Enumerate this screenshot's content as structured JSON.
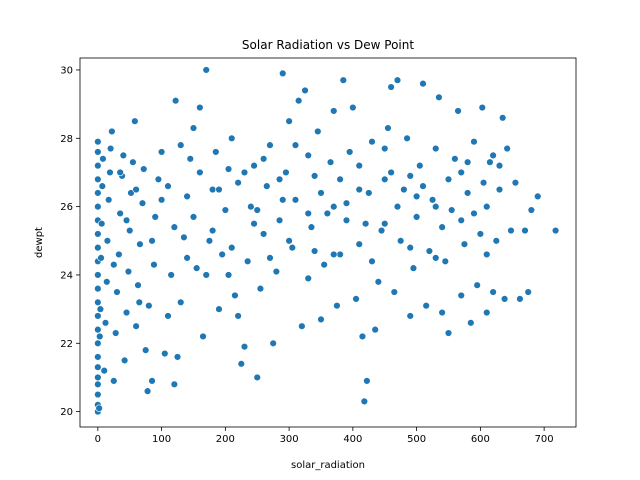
{
  "chart_data": {
    "type": "scatter",
    "title": "Solar Radiation vs Dew Point",
    "xlabel": "solar_radiation",
    "ylabel": "dewpt",
    "xlim": [
      -28,
      750
    ],
    "ylim": [
      19.55,
      30.35
    ],
    "xticks": [
      0,
      100,
      200,
      300,
      400,
      500,
      600,
      700
    ],
    "yticks": [
      20,
      22,
      24,
      26,
      28,
      30
    ],
    "grid": false,
    "legend": "none",
    "marker_color": "#1f77b4",
    "marker_edge": "#ffffff",
    "series": [
      {
        "points": [
          [
            0,
            20.0
          ],
          [
            0,
            20.2
          ],
          [
            0,
            20.5
          ],
          [
            0,
            20.8
          ],
          [
            0,
            21.0
          ],
          [
            0,
            21.3
          ],
          [
            0,
            21.6
          ],
          [
            0,
            22.0
          ],
          [
            0,
            22.4
          ],
          [
            0,
            22.8
          ],
          [
            0,
            23.2
          ],
          [
            0,
            23.6
          ],
          [
            0,
            24.0
          ],
          [
            0,
            24.4
          ],
          [
            0,
            24.8
          ],
          [
            0,
            25.2
          ],
          [
            0,
            25.6
          ],
          [
            0,
            26.0
          ],
          [
            0,
            26.4
          ],
          [
            0,
            26.8
          ],
          [
            0,
            27.2
          ],
          [
            0,
            27.6
          ],
          [
            0,
            27.9
          ],
          [
            2,
            20.1
          ],
          [
            3,
            22.2
          ],
          [
            4,
            23.0
          ],
          [
            5,
            24.5
          ],
          [
            6,
            25.5
          ],
          [
            7,
            26.6
          ],
          [
            8,
            27.4
          ],
          [
            10,
            21.2
          ],
          [
            12,
            22.6
          ],
          [
            14,
            23.8
          ],
          [
            15,
            25.0
          ],
          [
            17,
            26.2
          ],
          [
            19,
            27.0
          ],
          [
            20,
            27.7
          ],
          [
            22,
            28.2
          ],
          [
            25,
            20.9
          ],
          [
            28,
            22.3
          ],
          [
            30,
            23.5
          ],
          [
            33,
            24.6
          ],
          [
            35,
            25.8
          ],
          [
            38,
            26.9
          ],
          [
            40,
            27.5
          ],
          [
            42,
            21.5
          ],
          [
            45,
            22.9
          ],
          [
            48,
            24.1
          ],
          [
            50,
            25.3
          ],
          [
            52,
            26.4
          ],
          [
            55,
            27.3
          ],
          [
            58,
            28.5
          ],
          [
            60,
            22.5
          ],
          [
            63,
            23.7
          ],
          [
            66,
            24.9
          ],
          [
            70,
            26.1
          ],
          [
            72,
            27.1
          ],
          [
            75,
            21.8
          ],
          [
            78,
            20.6
          ],
          [
            80,
            23.1
          ],
          [
            85,
            20.9
          ],
          [
            88,
            24.3
          ],
          [
            90,
            25.7
          ],
          [
            95,
            26.8
          ],
          [
            100,
            27.6
          ],
          [
            105,
            21.7
          ],
          [
            110,
            22.8
          ],
          [
            115,
            24.0
          ],
          [
            120,
            20.8
          ],
          [
            122,
            29.1
          ],
          [
            125,
            21.6
          ],
          [
            130,
            23.2
          ],
          [
            135,
            25.1
          ],
          [
            140,
            26.3
          ],
          [
            145,
            27.4
          ],
          [
            150,
            28.3
          ],
          [
            155,
            24.2
          ],
          [
            160,
            28.9
          ],
          [
            165,
            22.2
          ],
          [
            170,
            30.0
          ],
          [
            175,
            25.0
          ],
          [
            180,
            26.5
          ],
          [
            185,
            27.6
          ],
          [
            190,
            23.0
          ],
          [
            195,
            24.6
          ],
          [
            200,
            25.9
          ],
          [
            205,
            27.1
          ],
          [
            210,
            28.0
          ],
          [
            215,
            23.4
          ],
          [
            220,
            22.8
          ],
          [
            225,
            21.4
          ],
          [
            230,
            21.9
          ],
          [
            235,
            24.4
          ],
          [
            240,
            26.0
          ],
          [
            245,
            27.2
          ],
          [
            250,
            21.0
          ],
          [
            255,
            23.6
          ],
          [
            260,
            25.2
          ],
          [
            265,
            26.6
          ],
          [
            270,
            27.8
          ],
          [
            275,
            22.0
          ],
          [
            280,
            24.1
          ],
          [
            285,
            25.6
          ],
          [
            290,
            29.9
          ],
          [
            295,
            27.0
          ],
          [
            300,
            28.5
          ],
          [
            305,
            24.8
          ],
          [
            310,
            26.2
          ],
          [
            315,
            29.1
          ],
          [
            320,
            22.5
          ],
          [
            325,
            29.4
          ],
          [
            330,
            23.9
          ],
          [
            335,
            25.4
          ],
          [
            340,
            26.9
          ],
          [
            345,
            28.2
          ],
          [
            350,
            22.7
          ],
          [
            355,
            24.3
          ],
          [
            360,
            25.8
          ],
          [
            365,
            27.3
          ],
          [
            370,
            28.8
          ],
          [
            375,
            23.1
          ],
          [
            380,
            24.6
          ],
          [
            385,
            29.7
          ],
          [
            390,
            26.1
          ],
          [
            395,
            27.6
          ],
          [
            400,
            28.9
          ],
          [
            405,
            23.3
          ],
          [
            410,
            24.9
          ],
          [
            415,
            22.2
          ],
          [
            418,
            20.3
          ],
          [
            422,
            20.9
          ],
          [
            425,
            26.4
          ],
          [
            430,
            27.9
          ],
          [
            435,
            22.4
          ],
          [
            440,
            23.8
          ],
          [
            445,
            25.3
          ],
          [
            450,
            26.8
          ],
          [
            455,
            28.3
          ],
          [
            460,
            29.5
          ],
          [
            465,
            23.5
          ],
          [
            470,
            29.7
          ],
          [
            475,
            25.0
          ],
          [
            480,
            26.5
          ],
          [
            485,
            28.0
          ],
          [
            490,
            22.8
          ],
          [
            495,
            24.2
          ],
          [
            500,
            25.7
          ],
          [
            505,
            27.2
          ],
          [
            510,
            29.6
          ],
          [
            515,
            23.1
          ],
          [
            520,
            24.7
          ],
          [
            525,
            26.2
          ],
          [
            530,
            27.7
          ],
          [
            535,
            29.2
          ],
          [
            540,
            22.9
          ],
          [
            545,
            24.4
          ],
          [
            550,
            22.3
          ],
          [
            555,
            25.9
          ],
          [
            560,
            27.4
          ],
          [
            565,
            28.8
          ],
          [
            570,
            23.4
          ],
          [
            575,
            24.9
          ],
          [
            580,
            26.4
          ],
          [
            585,
            22.6
          ],
          [
            590,
            27.9
          ],
          [
            595,
            23.7
          ],
          [
            600,
            25.2
          ],
          [
            603,
            28.9
          ],
          [
            605,
            26.7
          ],
          [
            610,
            22.9
          ],
          [
            615,
            27.3
          ],
          [
            620,
            23.5
          ],
          [
            625,
            25.0
          ],
          [
            630,
            26.5
          ],
          [
            635,
            28.6
          ],
          [
            638,
            23.3
          ],
          [
            642,
            27.7
          ],
          [
            648,
            25.3
          ],
          [
            655,
            26.7
          ],
          [
            662,
            23.3
          ],
          [
            670,
            25.3
          ],
          [
            675,
            23.5
          ],
          [
            680,
            25.9
          ],
          [
            690,
            26.3
          ],
          [
            718,
            25.3
          ],
          [
            120,
            25.4
          ],
          [
            160,
            27.0
          ],
          [
            205,
            24.0
          ],
          [
            245,
            25.5
          ],
          [
            285,
            26.8
          ],
          [
            330,
            27.5
          ],
          [
            370,
            26.0
          ],
          [
            410,
            27.2
          ],
          [
            450,
            25.5
          ],
          [
            490,
            26.9
          ],
          [
            530,
            26.0
          ],
          [
            570,
            27.0
          ],
          [
            610,
            26.0
          ],
          [
            100,
            26.2
          ],
          [
            140,
            24.5
          ],
          [
            180,
            25.3
          ],
          [
            220,
            26.7
          ],
          [
            260,
            27.4
          ],
          [
            300,
            25.0
          ],
          [
            340,
            24.7
          ],
          [
            380,
            26.8
          ],
          [
            420,
            25.5
          ],
          [
            460,
            27.0
          ],
          [
            500,
            26.3
          ],
          [
            540,
            25.4
          ],
          [
            580,
            27.3
          ],
          [
            620,
            27.5
          ],
          [
            60,
            26.5
          ],
          [
            35,
            27.0
          ],
          [
            25,
            24.3
          ],
          [
            45,
            25.6
          ],
          [
            65,
            23.2
          ],
          [
            85,
            25.0
          ],
          [
            110,
            26.6
          ],
          [
            130,
            27.8
          ],
          [
            150,
            25.7
          ],
          [
            170,
            24.0
          ],
          [
            190,
            26.5
          ],
          [
            210,
            24.8
          ],
          [
            230,
            27.0
          ],
          [
            250,
            25.9
          ],
          [
            270,
            24.5
          ],
          [
            290,
            26.2
          ],
          [
            310,
            27.8
          ],
          [
            330,
            25.8
          ],
          [
            350,
            26.4
          ],
          [
            370,
            24.6
          ],
          [
            390,
            25.6
          ],
          [
            410,
            26.5
          ],
          [
            430,
            24.4
          ],
          [
            450,
            27.7
          ],
          [
            470,
            26.0
          ],
          [
            490,
            24.8
          ],
          [
            510,
            26.6
          ],
          [
            530,
            24.5
          ],
          [
            550,
            26.8
          ],
          [
            570,
            25.6
          ],
          [
            590,
            25.8
          ],
          [
            610,
            24.6
          ],
          [
            630,
            27.2
          ]
        ]
      }
    ]
  }
}
